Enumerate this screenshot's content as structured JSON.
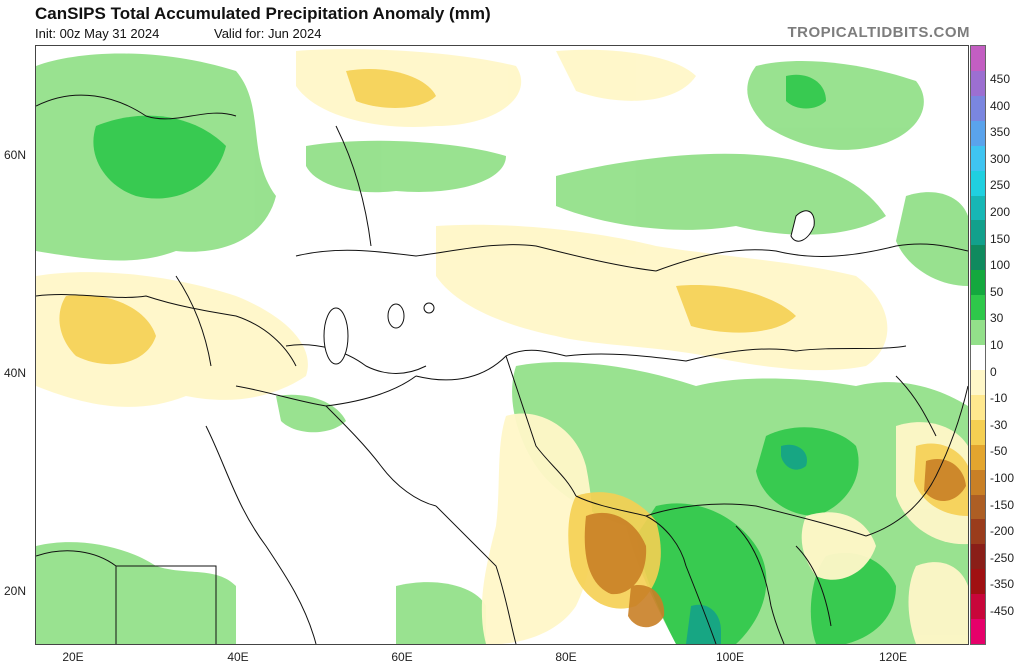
{
  "header": {
    "title": "CanSIPS Total Accumulated Precipitation Anomaly (mm)",
    "init": "Init: 00z May 31 2024",
    "valid": "Valid for: Jun 2024",
    "brand": "TROPICALTIDBITS.COM"
  },
  "map": {
    "lat_labels": [
      "60N",
      "40N",
      "20N"
    ],
    "lon_labels": [
      "20E",
      "40E",
      "60E",
      "80E",
      "100E",
      "120E"
    ]
  },
  "colorbar": {
    "labels": [
      "450",
      "400",
      "350",
      "300",
      "250",
      "200",
      "150",
      "100",
      "50",
      "30",
      "10",
      "0",
      "-10",
      "-30",
      "-50",
      "-100",
      "-150",
      "-200",
      "-250",
      "-350",
      "-450"
    ],
    "colors": [
      "#c35ec2",
      "#9c6fd1",
      "#7a86e0",
      "#5aa3ec",
      "#3fc4f1",
      "#20d0e0",
      "#17b7b5",
      "#12a08c",
      "#0f8a5e",
      "#14a83e",
      "#2ec84a",
      "#93e08a",
      "#ffffff",
      "#fff7c8",
      "#ffe88e",
      "#f5cf52",
      "#e3a52e",
      "#c98026",
      "#ad5e24",
      "#9a3c1c",
      "#8a1e18",
      "#a01012",
      "#c8063a",
      "#e6006a"
    ]
  }
}
